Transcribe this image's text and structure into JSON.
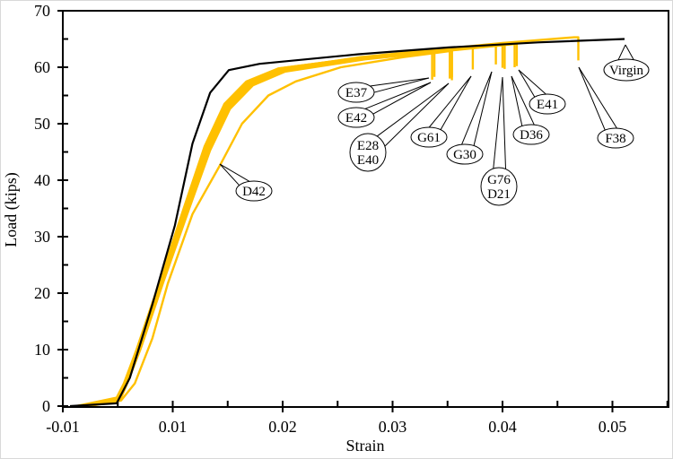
{
  "chart_data": {
    "type": "line",
    "xlabel": "Strain",
    "ylabel": "Load (kips)",
    "x_tick_labels": [
      "-0.01",
      "0.01",
      "0.02",
      "0.03",
      "0.04",
      "0.05"
    ],
    "y_tick_labels": [
      "0",
      "10",
      "20",
      "30",
      "40",
      "50",
      "60",
      "70"
    ],
    "xlim": [
      -0.01,
      0.0551
    ],
    "ylim": [
      0,
      70
    ],
    "grid": false,
    "legend": "none",
    "colors": {
      "virgin": "#000000",
      "damaged": "#FFC000"
    },
    "series": [
      {
        "name": "Virgin",
        "color": "#000000",
        "x": [
          -0.0087,
          -0.0002,
          0.0022,
          0.0063,
          0.0102,
          0.0118,
          0.0134,
          0.0151,
          0.0179,
          0.0269,
          0.0351,
          0.0432,
          0.0511
        ],
        "y": [
          0,
          0.5,
          5,
          18,
          32,
          46.5,
          55.5,
          59.5,
          60.6,
          62.3,
          63.5,
          64.4,
          65
        ]
      },
      {
        "name": "E37",
        "color": "#FFC000",
        "x": [
          -0.0076,
          -0.0002,
          0.0011,
          0.0034,
          0.0076,
          0.011,
          0.0129,
          0.0147,
          0.0167,
          0.0196,
          0.0269,
          0.0336,
          0.0336
        ],
        "y": [
          0,
          1.5,
          4,
          10,
          22,
          35,
          46,
          53.5,
          57.5,
          59.8,
          61.6,
          63.0,
          57.8
        ]
      },
      {
        "name": "E42",
        "color": "#FFC000",
        "x": [
          -0.007,
          0.0,
          0.0013,
          0.0037,
          0.0079,
          0.0112,
          0.0131,
          0.0149,
          0.0169,
          0.0198,
          0.0271,
          0.0338,
          0.0338
        ],
        "y": [
          0,
          1.2,
          4,
          10,
          22,
          35,
          46,
          53,
          57.2,
          59.6,
          61.5,
          62.9,
          58.3
        ]
      },
      {
        "name": "E28",
        "color": "#FFC000",
        "x": [
          -0.0068,
          0.0002,
          0.0015,
          0.0039,
          0.0081,
          0.0113,
          0.0132,
          0.015,
          0.017,
          0.0199,
          0.0272,
          0.0354,
          0.0354
        ],
        "y": [
          0,
          1.3,
          4,
          10,
          22,
          35,
          45.5,
          53,
          57,
          59.5,
          61.6,
          63.3,
          57.7
        ]
      },
      {
        "name": "E40",
        "color": "#FFC000",
        "x": [
          -0.0066,
          0.0001,
          0.0014,
          0.0038,
          0.008,
          0.0112,
          0.0131,
          0.015,
          0.0171,
          0.02,
          0.0273,
          0.0352,
          0.0352
        ],
        "y": [
          0,
          1.1,
          4,
          10,
          22,
          35,
          45.8,
          53.2,
          57.1,
          59.4,
          61.4,
          63.1,
          58.0
        ]
      },
      {
        "name": "G61",
        "color": "#FFC000",
        "x": [
          -0.0072,
          -0.0001,
          0.0012,
          0.0035,
          0.0077,
          0.0111,
          0.013,
          0.0148,
          0.0168,
          0.0197,
          0.027,
          0.0373,
          0.0373
        ],
        "y": [
          0,
          1.4,
          4,
          10,
          22,
          35,
          46,
          53.4,
          57.4,
          59.7,
          61.6,
          63.6,
          59.6
        ]
      },
      {
        "name": "G30",
        "color": "#FFC000",
        "x": [
          -0.0064,
          0.0003,
          0.0016,
          0.004,
          0.0082,
          0.0114,
          0.0133,
          0.0151,
          0.0172,
          0.0201,
          0.0274,
          0.0394,
          0.0394
        ],
        "y": [
          0,
          1.0,
          4,
          10,
          22,
          35,
          45.5,
          52.8,
          57,
          59.4,
          61.5,
          63.9,
          60.5
        ]
      },
      {
        "name": "G76",
        "color": "#FFC000",
        "x": [
          -0.0074,
          -0.0001,
          0.0012,
          0.0036,
          0.0078,
          0.0111,
          0.013,
          0.0148,
          0.0168,
          0.0197,
          0.027,
          0.0402,
          0.0402
        ],
        "y": [
          0,
          1.3,
          4,
          10,
          22,
          35,
          46,
          53.5,
          57.5,
          59.8,
          61.7,
          64.0,
          59.7
        ]
      },
      {
        "name": "D21",
        "color": "#FFC000",
        "x": [
          -0.0062,
          0.0004,
          0.0017,
          0.0041,
          0.0083,
          0.0115,
          0.0134,
          0.0152,
          0.0173,
          0.0202,
          0.0275,
          0.04,
          0.04
        ],
        "y": [
          0,
          1.0,
          4,
          10,
          22,
          35,
          45.3,
          52.6,
          56.8,
          59.2,
          61.4,
          63.9,
          59.9
        ]
      },
      {
        "name": "D36",
        "color": "#FFC000",
        "x": [
          -0.007,
          0.0,
          0.0013,
          0.0036,
          0.0078,
          0.0111,
          0.013,
          0.0149,
          0.0169,
          0.0198,
          0.0271,
          0.0411,
          0.0411
        ],
        "y": [
          0,
          1.2,
          4,
          10,
          22,
          35,
          45.8,
          53.2,
          57.3,
          59.6,
          61.6,
          64.1,
          60.0
        ]
      },
      {
        "name": "E41",
        "color": "#FFC000",
        "x": [
          -0.0067,
          0.0002,
          0.0015,
          0.0038,
          0.008,
          0.0113,
          0.0132,
          0.015,
          0.017,
          0.0199,
          0.0272,
          0.0413,
          0.0413
        ],
        "y": [
          0,
          1.1,
          4,
          10,
          22,
          35,
          45.6,
          53,
          57.1,
          59.5,
          61.5,
          64.2,
          60.2
        ]
      },
      {
        "name": "F38",
        "color": "#FFC000",
        "x": [
          -0.0069,
          0.0001,
          0.0014,
          0.0037,
          0.0079,
          0.0112,
          0.0131,
          0.0149,
          0.0169,
          0.0198,
          0.0271,
          0.04,
          0.0465,
          0.0469,
          0.0469
        ],
        "y": [
          0,
          1.2,
          4,
          10,
          22,
          35,
          45.8,
          53.2,
          57.3,
          59.7,
          61.8,
          64.3,
          65.3,
          65.3,
          61.2
        ]
      },
      {
        "name": "D42",
        "color": "#FFC000",
        "x": [
          -0.0051,
          0.0006,
          0.0031,
          0.0063,
          0.0091,
          0.0118,
          0.0144,
          0.0163,
          0.0187,
          0.0212,
          0.0253,
          0.031,
          0.0354,
          0.0354
        ],
        "y": [
          0,
          1,
          4,
          12,
          21.7,
          34,
          43,
          50,
          55,
          57.5,
          60,
          61.8,
          62.9,
          58.2
        ]
      }
    ],
    "annotations": [
      {
        "lines": [
          "E37"
        ]
      },
      {
        "lines": [
          "E42"
        ]
      },
      {
        "lines": [
          "E28",
          "E40"
        ]
      },
      {
        "lines": [
          "G61"
        ]
      },
      {
        "lines": [
          "G30"
        ]
      },
      {
        "lines": [
          "G76",
          "D21"
        ]
      },
      {
        "lines": [
          "D36"
        ]
      },
      {
        "lines": [
          "E41"
        ]
      },
      {
        "lines": [
          "F38"
        ]
      },
      {
        "lines": [
          "Virgin"
        ]
      },
      {
        "lines": [
          "D42"
        ]
      }
    ]
  }
}
